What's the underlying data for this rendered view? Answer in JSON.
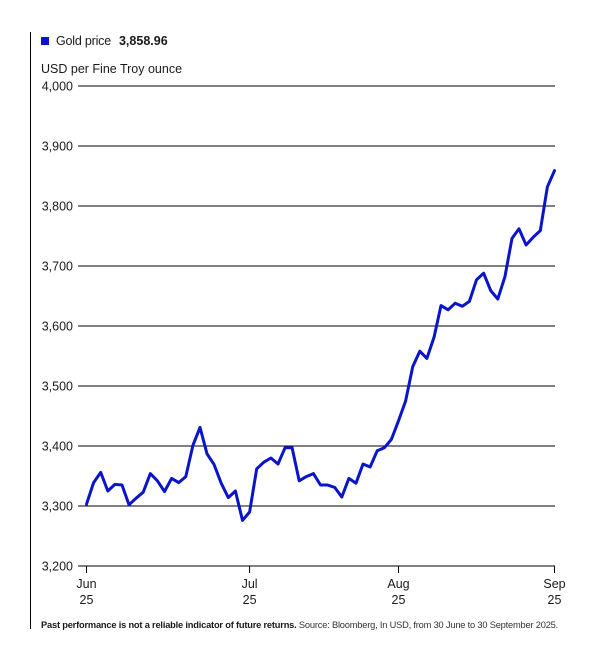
{
  "legend": {
    "label": "Gold price",
    "value": "3,858.96",
    "color": "#0a14c8"
  },
  "unit_label": "USD per Fine Troy ounce",
  "footer": {
    "disclaimer": "Past performance is not a reliable indicator of future returns.",
    "source": "Source: Bloomberg, In USD, from 30 June to 30 September 2025."
  },
  "chart_data": {
    "type": "line",
    "title": "",
    "ylabel": "USD per Fine Troy ounce",
    "xlabel": "",
    "ylim": [
      3200,
      4000
    ],
    "yticks": [
      {
        "value": 4000,
        "label": "4,000"
      },
      {
        "value": 3900,
        "label": "3,900"
      },
      {
        "value": 3800,
        "label": "3,800"
      },
      {
        "value": 3700,
        "label": "3,700"
      },
      {
        "value": 3600,
        "label": "3,600"
      },
      {
        "value": 3500,
        "label": "3,500"
      },
      {
        "value": 3400,
        "label": "3,400"
      },
      {
        "value": 3300,
        "label": "3,300"
      },
      {
        "value": 3200,
        "label": "3,200"
      }
    ],
    "xlim": [
      0,
      66
    ],
    "xticks": [
      {
        "index": 0,
        "month": "Jun",
        "year": "25"
      },
      {
        "index": 23,
        "month": "Jul",
        "year": "25"
      },
      {
        "index": 44,
        "month": "Aug",
        "year": "25"
      },
      {
        "index": 66,
        "month": "Sep",
        "year": "25"
      }
    ],
    "grid": "horizontal",
    "legend_position": "top-left",
    "series": [
      {
        "name": "Gold price",
        "color": "#0a14c8",
        "values": [
          3303,
          3339,
          3356,
          3325,
          3336,
          3335,
          3302,
          3313,
          3323,
          3354,
          3342,
          3324,
          3346,
          3339,
          3349,
          3401,
          3431,
          3387,
          3369,
          3338,
          3314,
          3325,
          3276,
          3290,
          3362,
          3373,
          3380,
          3370,
          3397,
          3397,
          3342,
          3349,
          3354,
          3335,
          3335,
          3331,
          3315,
          3346,
          3338,
          3370,
          3365,
          3392,
          3397,
          3411,
          3442,
          3475,
          3532,
          3558,
          3546,
          3581,
          3634,
          3627,
          3638,
          3633,
          3641,
          3677,
          3688,
          3659,
          3645,
          3682,
          3746,
          3762,
          3735,
          3748,
          3759,
          3832,
          3858.96
        ]
      }
    ]
  }
}
